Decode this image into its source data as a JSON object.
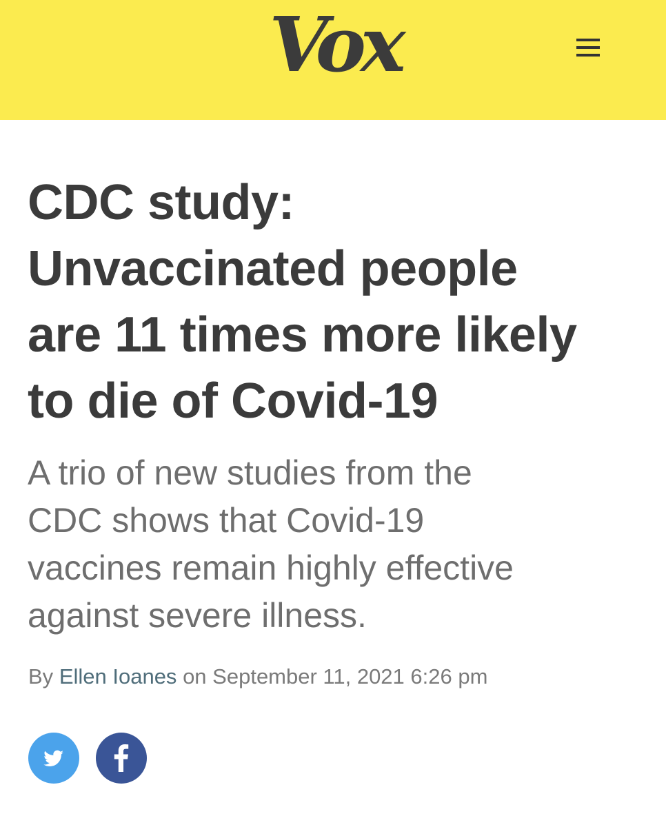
{
  "header": {
    "logo_text": "Vox",
    "background_color": "#fbeb4f",
    "menu_icon": "hamburger-menu-icon"
  },
  "article": {
    "headline_lines": [
      "CDC study:",
      "Unvaccinated people",
      "are 11 times more likely",
      "to die of Covid-19"
    ],
    "dek_lines": [
      "A trio of new studies from the",
      "CDC shows that Covid-19",
      "vaccines remain highly effective",
      "against severe illness."
    ],
    "byline": {
      "prefix": "By",
      "author": "Ellen Ioanes",
      "middle": "on",
      "date": "September 11, 2021 6:26 pm"
    }
  },
  "share": {
    "twitter": {
      "icon": "twitter-bird-icon",
      "color": "#4ba3eb"
    },
    "facebook": {
      "icon": "facebook-f-icon",
      "color": "#3a5597"
    }
  }
}
